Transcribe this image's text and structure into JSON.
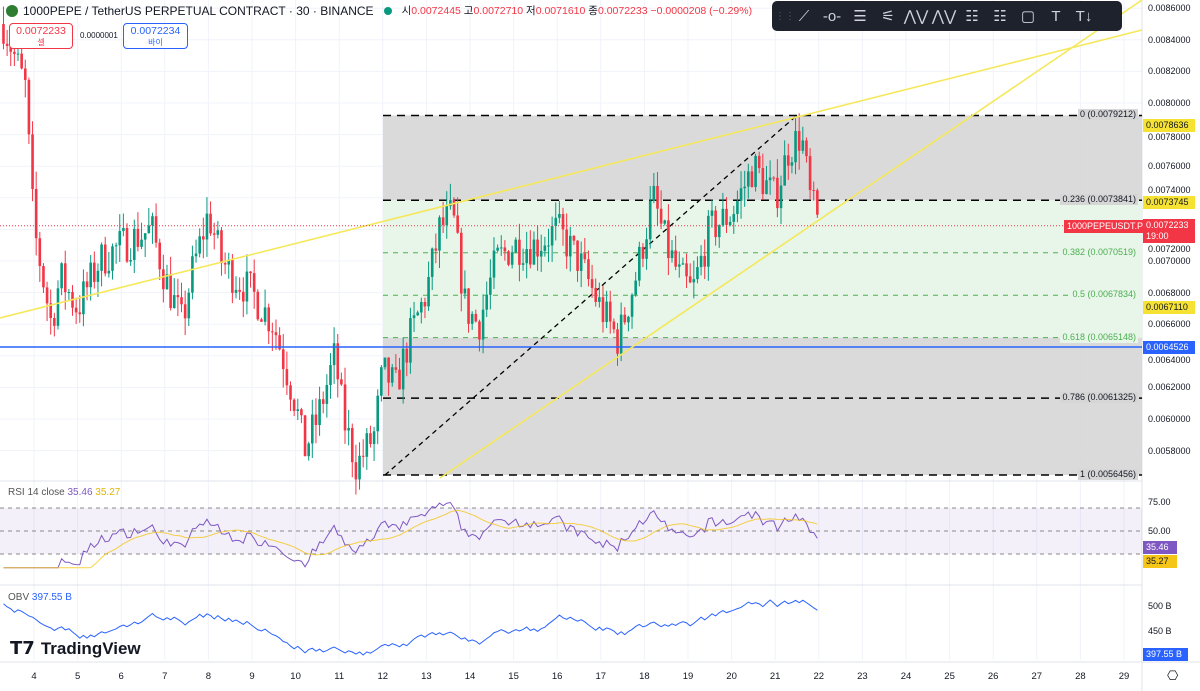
{
  "header": {
    "symbol": "1000PEPE / TetherUS PERPETUAL CONTRACT · 30 · BINANCE",
    "o_label": "시",
    "o": "0.0072445",
    "h_label": "고",
    "h": "0.0072710",
    "l_label": "저",
    "l": "0.0071610",
    "c_label": "종",
    "c": "0.0072233",
    "change": "−0.0000208 (−0.29%)"
  },
  "trade": {
    "sell_price": "0.0072233",
    "sell_label": "셀",
    "spread": "0.0000001",
    "buy_price": "0.0072234",
    "buy_label": "바이"
  },
  "toolbar": {
    "tools": [
      "trend-line",
      "horizontal-ray",
      "parallel-channel",
      "fib-retracement",
      "xabcd-pattern",
      "abcd-pattern",
      "long-position",
      "short-position",
      "rectangle",
      "text",
      "anchored-text"
    ],
    "text_glyph": "T"
  },
  "price_axis": {
    "labels": [
      "0.0086000",
      "0.0084000",
      "0.0082000",
      "0.0080000",
      "0.0078000",
      "0.0076000",
      "0.0074000",
      "0.0072000",
      "0.0070000",
      "0.0068000",
      "0.0066000",
      "0.0064000",
      "0.0062000",
      "0.0060000",
      "0.0058000"
    ],
    "tags": [
      {
        "value": "0.0078636",
        "color": "#f5e232"
      },
      {
        "value": "0.0073745",
        "color": "#f5e232"
      },
      {
        "value": "0.0067110",
        "color": "#f5e232"
      },
      {
        "value": "0.0064526",
        "color": "#2962ff"
      }
    ],
    "current": {
      "symbol": "1000PEPEUSDT.P",
      "price": "0.0072233",
      "countdown": "19:00",
      "color": "#f23645"
    }
  },
  "fib": [
    {
      "label": "0 (0.0079212)",
      "price": 0.0079212
    },
    {
      "label": "0.236 (0.0073841)",
      "price": 0.0073841
    },
    {
      "label": "0.382 (0.0070519)",
      "price": 0.0070519
    },
    {
      "label": "0.5 (0.0067834)",
      "price": 0.0067834
    },
    {
      "label": "0.618 (0.0065148)",
      "price": 0.0065148
    },
    {
      "label": "0.786 (0.0061325)",
      "price": 0.0061325
    },
    {
      "label": "1 (0.0056456)",
      "price": 0.0056456
    }
  ],
  "rsi": {
    "title": "RSI 14 close",
    "value": "35.46",
    "ma": "35.27",
    "axis": [
      "75.00",
      "50.00"
    ],
    "color": "#7e57c2",
    "ma_color": "#f5c518"
  },
  "obv": {
    "title": "OBV",
    "value": "397.55 B",
    "axis": [
      "500 B",
      "450 B"
    ],
    "color": "#2962ff"
  },
  "time_axis": [
    "4",
    "5",
    "6",
    "7",
    "8",
    "9",
    "10",
    "11",
    "12",
    "13",
    "14",
    "15",
    "16",
    "17",
    "18",
    "19",
    "20",
    "21",
    "22",
    "23",
    "24",
    "25",
    "26",
    "27",
    "28",
    "29"
  ],
  "branding": "TradingView",
  "chart_data": {
    "type": "candlestick",
    "interval": "30",
    "ylim": [
      0.0055,
      0.0087
    ],
    "price_path": [
      [
        3.3,
        0.0085
      ],
      [
        3.8,
        0.0081
      ],
      [
        4.0,
        0.0072
      ],
      [
        4.4,
        0.0066
      ],
      [
        4.6,
        0.0069
      ],
      [
        5.0,
        0.0067
      ],
      [
        5.5,
        0.007
      ],
      [
        6.0,
        0.0071
      ],
      [
        6.7,
        0.0072
      ],
      [
        7.0,
        0.0069
      ],
      [
        7.4,
        0.0066
      ],
      [
        7.6,
        0.0069
      ],
      [
        8.0,
        0.0073
      ],
      [
        8.3,
        0.007
      ],
      [
        8.6,
        0.0069
      ],
      [
        9.0,
        0.0068
      ],
      [
        9.5,
        0.0066
      ],
      [
        10.0,
        0.0061
      ],
      [
        10.2,
        0.0058
      ],
      [
        10.5,
        0.006
      ],
      [
        10.9,
        0.0064
      ],
      [
        11.1,
        0.006
      ],
      [
        11.4,
        0.0057
      ],
      [
        11.8,
        0.0059
      ],
      [
        12.0,
        0.0063
      ],
      [
        12.3,
        0.0062
      ],
      [
        12.6,
        0.0065
      ],
      [
        13.0,
        0.0068
      ],
      [
        13.3,
        0.0072
      ],
      [
        13.6,
        0.0073
      ],
      [
        13.9,
        0.0067
      ],
      [
        14.2,
        0.0066
      ],
      [
        14.6,
        0.007
      ],
      [
        15.0,
        0.0071
      ],
      [
        15.5,
        0.0071
      ],
      [
        16.0,
        0.0072
      ],
      [
        16.5,
        0.007
      ],
      [
        17.0,
        0.0067
      ],
      [
        17.4,
        0.0065
      ],
      [
        17.8,
        0.0069
      ],
      [
        18.2,
        0.0074
      ],
      [
        18.5,
        0.0071
      ],
      [
        18.8,
        0.0069
      ],
      [
        19.1,
        0.0068
      ],
      [
        19.5,
        0.0072
      ],
      [
        20.0,
        0.0073
      ],
      [
        20.5,
        0.0076
      ],
      [
        21.0,
        0.0074
      ],
      [
        21.3,
        0.0077
      ],
      [
        21.6,
        0.0078
      ],
      [
        21.8,
        0.0074
      ],
      [
        22.0,
        0.0072233
      ]
    ]
  }
}
